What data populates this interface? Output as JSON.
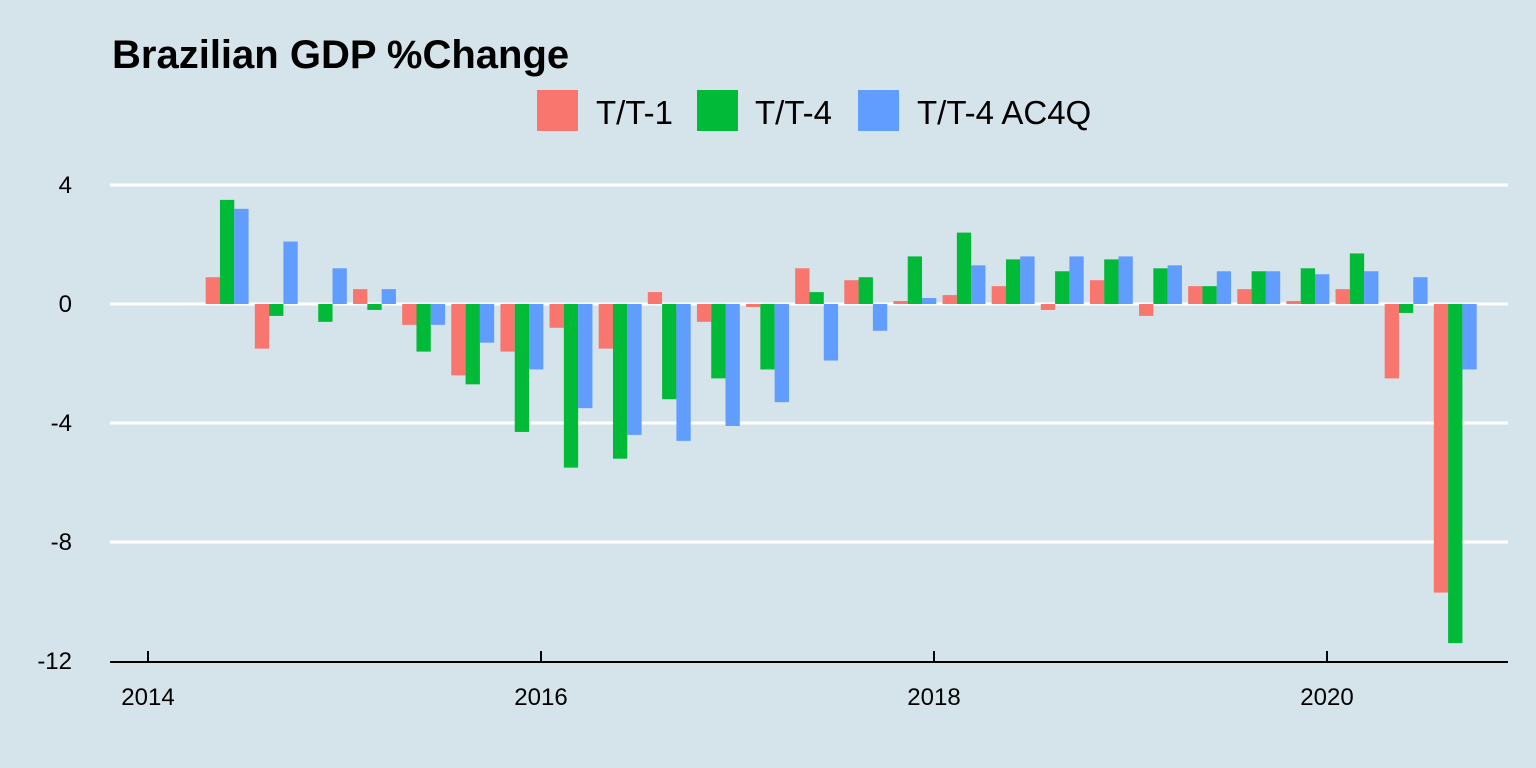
{
  "chart_data": {
    "type": "bar",
    "title": "Brazilian GDP %Change",
    "xlabel": "",
    "ylabel": "",
    "colors": {
      "background": "#d5e4eb",
      "grid": "#ffffff",
      "axis": "#000000"
    },
    "legend_position": "top",
    "grid": true,
    "ylim": [
      -12,
      4
    ],
    "y_ticks": [
      4,
      0,
      -4,
      -8,
      -12
    ],
    "y_tick_labels": [
      "4",
      "0",
      "-4",
      "-8",
      "-12"
    ],
    "xlim": [
      2014,
      2021
    ],
    "x_ticks": [
      2014,
      2016,
      2018,
      2020
    ],
    "x_tick_labels": [
      "2014",
      "2016",
      "2018",
      "2020"
    ],
    "x": [
      2014.25,
      2014.5,
      2014.75,
      2015.0,
      2015.25,
      2015.5,
      2015.75,
      2016.0,
      2016.25,
      2016.5,
      2016.75,
      2017.0,
      2017.25,
      2017.5,
      2017.75,
      2018.0,
      2018.25,
      2018.5,
      2018.75,
      2019.0,
      2019.25,
      2019.5,
      2019.75,
      2020.0,
      2020.25,
      2020.5
    ],
    "series": [
      {
        "name": "T/T-1",
        "color": "#f8766d",
        "values": [
          0.9,
          -1.5,
          0.0,
          0.5,
          -0.7,
          -2.4,
          -1.6,
          -0.8,
          -1.5,
          0.4,
          -0.6,
          -0.1,
          1.2,
          0.8,
          0.1,
          0.3,
          0.6,
          -0.2,
          0.8,
          -0.4,
          0.6,
          0.5,
          0.1,
          0.5,
          -2.5,
          -9.7
        ]
      },
      {
        "name": "T/T-4",
        "color": "#00ba38",
        "values": [
          3.5,
          -0.4,
          -0.6,
          -0.2,
          -1.6,
          -2.7,
          -4.3,
          -5.5,
          -5.2,
          -3.2,
          -2.5,
          -2.2,
          0.4,
          0.9,
          1.6,
          2.4,
          1.5,
          1.1,
          1.5,
          1.2,
          0.6,
          1.1,
          1.2,
          1.7,
          -0.3,
          -11.4
        ]
      },
      {
        "name": "T/T-4 AC4Q",
        "color": "#619cff",
        "values": [
          3.2,
          2.1,
          1.2,
          0.5,
          -0.7,
          -1.3,
          -2.2,
          -3.5,
          -4.4,
          -4.6,
          -4.1,
          -3.3,
          -1.9,
          -0.9,
          0.2,
          1.3,
          1.6,
          1.6,
          1.6,
          1.3,
          1.1,
          1.1,
          1.0,
          1.1,
          0.9,
          -2.2
        ]
      }
    ]
  }
}
